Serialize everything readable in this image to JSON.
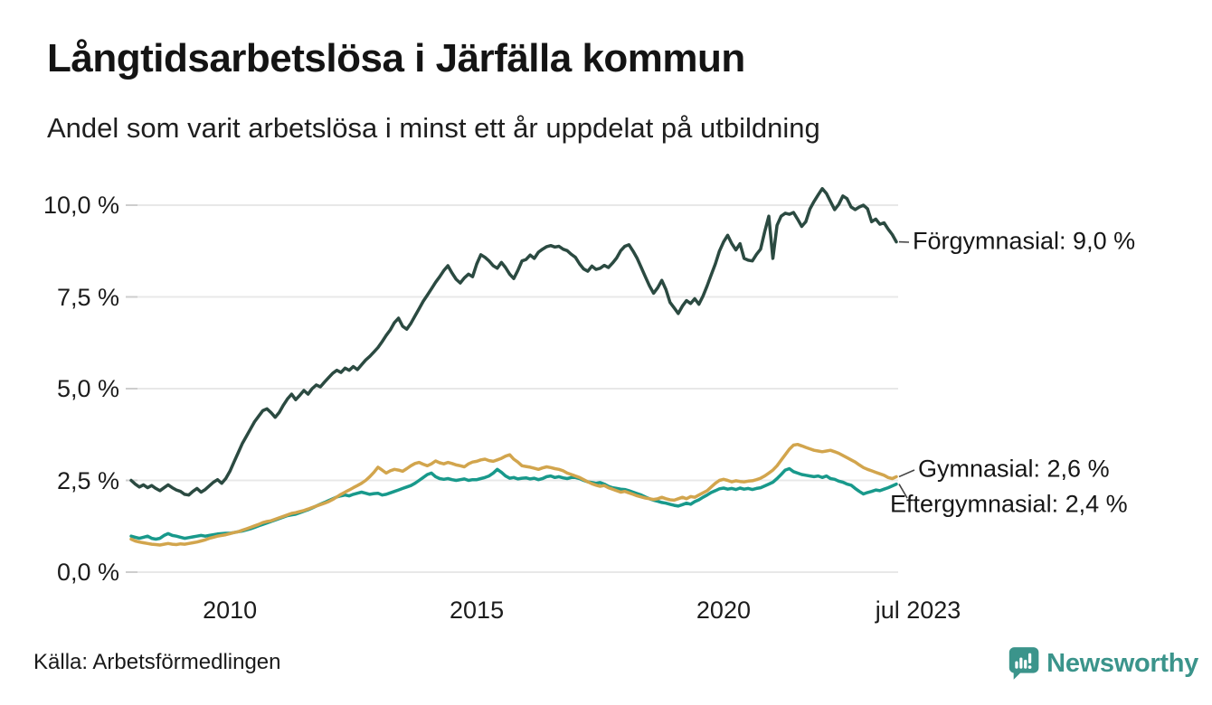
{
  "title": "Långtidsarbetslösa i Järfälla kommun",
  "subtitle": "Andel som varit arbetslösa i minst ett år uppdelat på utbildning",
  "source": "Källa: Arbetsförmedlingen",
  "branding": {
    "name": "Newsworthy",
    "color": "#3b948b"
  },
  "chart_data": {
    "type": "line",
    "title": "Långtidsarbetslösa i Järfälla kommun",
    "subtitle": "Andel som varit arbetslösa i minst ett år uppdelat på utbildning",
    "x_unit": "month",
    "x_start": "2008-01",
    "x_end": "2023-07",
    "x_span_years": 15.5,
    "ylim": [
      0,
      10.9
    ],
    "grid": "horizontal",
    "gridline_color": "#e8e8e8",
    "x_ticks": [
      {
        "label": "2010",
        "year_offset": 2
      },
      {
        "label": "2015",
        "year_offset": 7
      },
      {
        "label": "2020",
        "year_offset": 12
      },
      {
        "label": "jul 2023",
        "year_offset": 15.5
      }
    ],
    "y_ticks": [
      {
        "label": "0,0 %",
        "value": 0
      },
      {
        "label": "2,5 %",
        "value": 2.5
      },
      {
        "label": "5,0 %",
        "value": 5
      },
      {
        "label": "7,5 %",
        "value": 7.5
      },
      {
        "label": "10,0 %",
        "value": 10
      }
    ],
    "series": [
      {
        "name": "Förgymnasial",
        "end_label": "Förgymnasial: 9,0 %",
        "end_value_text": "9,0 %",
        "color": "#2b4a41",
        "values": [
          2.5,
          2.4,
          2.32,
          2.38,
          2.3,
          2.36,
          2.28,
          2.22,
          2.3,
          2.38,
          2.3,
          2.24,
          2.2,
          2.12,
          2.1,
          2.2,
          2.28,
          2.18,
          2.25,
          2.35,
          2.45,
          2.52,
          2.42,
          2.55,
          2.75,
          3.0,
          3.25,
          3.5,
          3.7,
          3.9,
          4.1,
          4.25,
          4.4,
          4.45,
          4.35,
          4.22,
          4.35,
          4.55,
          4.72,
          4.85,
          4.7,
          4.82,
          4.95,
          4.85,
          5.0,
          5.1,
          5.05,
          5.18,
          5.3,
          5.42,
          5.5,
          5.44,
          5.56,
          5.5,
          5.6,
          5.52,
          5.65,
          5.78,
          5.88,
          6.0,
          6.12,
          6.28,
          6.45,
          6.6,
          6.8,
          6.92,
          6.7,
          6.62,
          6.78,
          6.98,
          7.18,
          7.38,
          7.55,
          7.72,
          7.9,
          8.05,
          8.22,
          8.35,
          8.15,
          7.98,
          7.88,
          8.02,
          8.12,
          8.05,
          8.4,
          8.65,
          8.58,
          8.48,
          8.35,
          8.28,
          8.44,
          8.3,
          8.12,
          8.0,
          8.22,
          8.48,
          8.52,
          8.64,
          8.55,
          8.72,
          8.8,
          8.87,
          8.9,
          8.86,
          8.88,
          8.8,
          8.76,
          8.66,
          8.58,
          8.4,
          8.26,
          8.2,
          8.34,
          8.25,
          8.28,
          8.36,
          8.3,
          8.42,
          8.56,
          8.76,
          8.88,
          8.92,
          8.75,
          8.55,
          8.3,
          8.05,
          7.8,
          7.6,
          7.75,
          7.95,
          7.7,
          7.35,
          7.2,
          7.05,
          7.25,
          7.4,
          7.32,
          7.45,
          7.3,
          7.52,
          7.8,
          8.1,
          8.4,
          8.75,
          9.0,
          9.18,
          8.95,
          8.78,
          8.95,
          8.55,
          8.5,
          8.48,
          8.66,
          8.8,
          9.28,
          9.7,
          8.55,
          9.45,
          9.7,
          9.78,
          9.75,
          9.8,
          9.62,
          9.42,
          9.55,
          9.9,
          10.1,
          10.28,
          10.45,
          10.32,
          10.1,
          9.88,
          10.02,
          10.25,
          10.18,
          9.95,
          9.88,
          9.95,
          10.0,
          9.9,
          9.55,
          9.62,
          9.48,
          9.52,
          9.35,
          9.2,
          9.0
        ]
      },
      {
        "name": "Gymnasial",
        "end_label": "Gymnasial: 2,6 %",
        "end_value_text": "2,6 %",
        "color": "#d2a54d",
        "values": [
          0.9,
          0.85,
          0.82,
          0.8,
          0.78,
          0.76,
          0.75,
          0.74,
          0.76,
          0.78,
          0.76,
          0.75,
          0.77,
          0.76,
          0.78,
          0.8,
          0.82,
          0.85,
          0.88,
          0.92,
          0.95,
          0.98,
          1.0,
          1.02,
          1.05,
          1.08,
          1.1,
          1.14,
          1.18,
          1.22,
          1.26,
          1.3,
          1.35,
          1.38,
          1.4,
          1.44,
          1.48,
          1.52,
          1.56,
          1.6,
          1.62,
          1.65,
          1.68,
          1.72,
          1.76,
          1.8,
          1.84,
          1.88,
          1.92,
          1.98,
          2.05,
          2.12,
          2.18,
          2.24,
          2.3,
          2.36,
          2.42,
          2.5,
          2.6,
          2.72,
          2.86,
          2.78,
          2.7,
          2.76,
          2.8,
          2.78,
          2.75,
          2.82,
          2.9,
          2.96,
          2.99,
          2.94,
          2.9,
          2.95,
          3.03,
          2.98,
          2.95,
          2.99,
          2.96,
          2.92,
          2.9,
          2.87,
          2.95,
          3.0,
          3.02,
          3.06,
          3.08,
          3.04,
          3.02,
          3.06,
          3.1,
          3.16,
          3.2,
          3.08,
          3.0,
          2.9,
          2.88,
          2.86,
          2.83,
          2.8,
          2.84,
          2.87,
          2.85,
          2.82,
          2.8,
          2.76,
          2.7,
          2.66,
          2.62,
          2.58,
          2.52,
          2.46,
          2.41,
          2.37,
          2.34,
          2.36,
          2.3,
          2.26,
          2.22,
          2.18,
          2.2,
          2.16,
          2.12,
          2.08,
          2.05,
          2.02,
          2.0,
          1.98,
          2.0,
          2.04,
          2.0,
          1.97,
          1.96,
          2.0,
          2.04,
          2.0,
          2.06,
          2.04,
          2.1,
          2.16,
          2.22,
          2.32,
          2.42,
          2.5,
          2.53,
          2.5,
          2.46,
          2.49,
          2.47,
          2.46,
          2.48,
          2.49,
          2.52,
          2.56,
          2.62,
          2.7,
          2.78,
          2.9,
          3.05,
          3.2,
          3.35,
          3.46,
          3.48,
          3.44,
          3.4,
          3.36,
          3.32,
          3.3,
          3.28,
          3.3,
          3.32,
          3.28,
          3.24,
          3.18,
          3.12,
          3.06,
          3.0,
          2.92,
          2.85,
          2.8,
          2.76,
          2.72,
          2.68,
          2.64,
          2.58,
          2.55,
          2.6
        ]
      },
      {
        "name": "Eftergymnasial",
        "end_label": "Eftergymnasial: 2,4 %",
        "end_value_text": "2,4 %",
        "color": "#18998b",
        "values": [
          0.98,
          0.95,
          0.92,
          0.95,
          0.98,
          0.92,
          0.9,
          0.92,
          1.0,
          1.05,
          1.0,
          0.98,
          0.95,
          0.92,
          0.94,
          0.96,
          0.98,
          1.0,
          0.98,
          1.0,
          1.02,
          1.04,
          1.05,
          1.06,
          1.06,
          1.08,
          1.1,
          1.12,
          1.15,
          1.18,
          1.22,
          1.26,
          1.3,
          1.34,
          1.38,
          1.42,
          1.46,
          1.5,
          1.54,
          1.56,
          1.58,
          1.62,
          1.66,
          1.7,
          1.75,
          1.8,
          1.85,
          1.9,
          1.95,
          2.0,
          2.05,
          2.08,
          2.1,
          2.08,
          2.12,
          2.15,
          2.18,
          2.15,
          2.12,
          2.14,
          2.15,
          2.1,
          2.12,
          2.16,
          2.2,
          2.24,
          2.28,
          2.32,
          2.36,
          2.42,
          2.5,
          2.58,
          2.66,
          2.7,
          2.6,
          2.55,
          2.53,
          2.55,
          2.52,
          2.5,
          2.52,
          2.54,
          2.5,
          2.52,
          2.52,
          2.55,
          2.58,
          2.62,
          2.7,
          2.8,
          2.72,
          2.62,
          2.56,
          2.58,
          2.54,
          2.56,
          2.57,
          2.54,
          2.56,
          2.52,
          2.55,
          2.6,
          2.62,
          2.58,
          2.6,
          2.57,
          2.55,
          2.58,
          2.58,
          2.55,
          2.5,
          2.46,
          2.44,
          2.42,
          2.44,
          2.4,
          2.34,
          2.3,
          2.28,
          2.26,
          2.25,
          2.22,
          2.18,
          2.14,
          2.1,
          2.05,
          2.0,
          1.96,
          1.93,
          1.9,
          1.88,
          1.85,
          1.82,
          1.8,
          1.84,
          1.88,
          1.85,
          1.92,
          1.97,
          2.04,
          2.1,
          2.17,
          2.22,
          2.27,
          2.29,
          2.26,
          2.28,
          2.25,
          2.29,
          2.26,
          2.28,
          2.25,
          2.28,
          2.3,
          2.35,
          2.4,
          2.45,
          2.55,
          2.66,
          2.78,
          2.82,
          2.74,
          2.7,
          2.66,
          2.64,
          2.62,
          2.6,
          2.62,
          2.58,
          2.62,
          2.55,
          2.53,
          2.48,
          2.45,
          2.4,
          2.37,
          2.28,
          2.2,
          2.13,
          2.17,
          2.2,
          2.24,
          2.22,
          2.26,
          2.3,
          2.35,
          2.4
        ]
      }
    ]
  }
}
